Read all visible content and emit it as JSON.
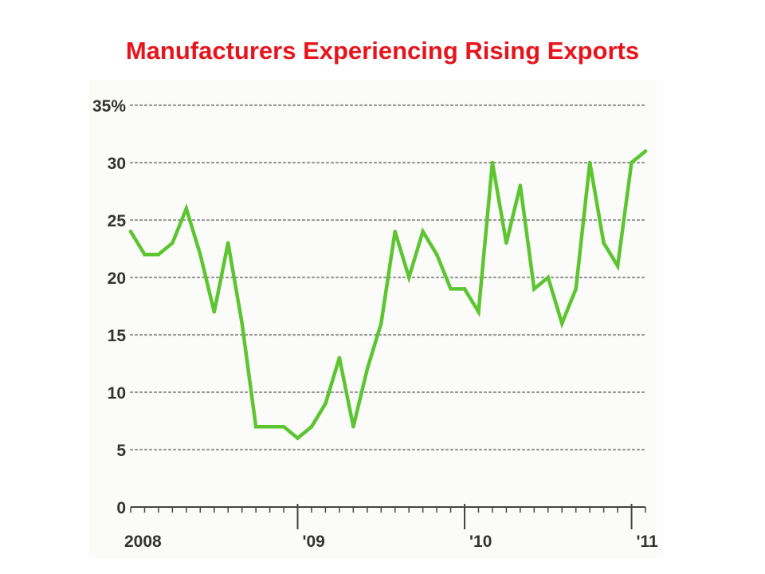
{
  "chart_data": {
    "type": "line",
    "title": "Manufacturers Experiencing Rising Exports",
    "xlabel": "",
    "ylabel": "",
    "ylim": [
      0,
      35
    ],
    "grid": true,
    "y_ticks": [
      {
        "value": 0,
        "label": "0"
      },
      {
        "value": 5,
        "label": "5"
      },
      {
        "value": 10,
        "label": "10"
      },
      {
        "value": 15,
        "label": "15"
      },
      {
        "value": 20,
        "label": "20"
      },
      {
        "value": 25,
        "label": "25"
      },
      {
        "value": 30,
        "label": "30"
      },
      {
        "value": 35,
        "label": "35%"
      }
    ],
    "x_year_labels": [
      {
        "index": 0,
        "label": "2008"
      },
      {
        "index": 12,
        "label": "'09"
      },
      {
        "index": 24,
        "label": "'10"
      },
      {
        "index": 36,
        "label": "'11"
      }
    ],
    "series": [
      {
        "name": "Manufacturers experiencing rising exports",
        "color": "#5cc530",
        "values": [
          24,
          22,
          22,
          23,
          26,
          22,
          17,
          23,
          16,
          7,
          7,
          7,
          6,
          7,
          9,
          13,
          7,
          12,
          16,
          24,
          20,
          24,
          22,
          19,
          19,
          17,
          30,
          23,
          28,
          19,
          20,
          16,
          19,
          30,
          23,
          21,
          30,
          31
        ]
      }
    ]
  },
  "colors": {
    "title": "#e8141b",
    "line": "#5cc530",
    "grid": "#9a9a9a",
    "axis": "#444444",
    "labels": "#333333"
  }
}
